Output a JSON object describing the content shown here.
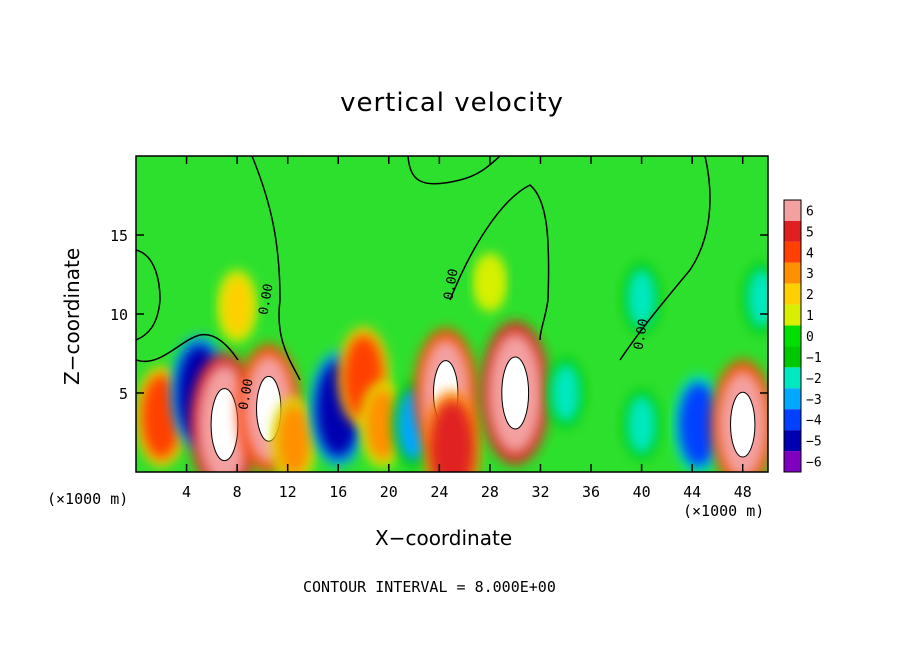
{
  "chart_data": {
    "type": "heatmap",
    "title": "vertical velocity",
    "xlabel": "X−coordinate",
    "ylabel": "Z−coordinate",
    "x_unit_left": "(×1000 m)",
    "x_unit_right": "(×1000 m)",
    "note": "CONTOUR INTERVAL = 8.000E+00",
    "xlim": [
      0,
      50
    ],
    "ylim": [
      0,
      20
    ],
    "x_ticks": [
      4,
      8,
      12,
      16,
      20,
      24,
      28,
      32,
      36,
      40,
      44,
      48
    ],
    "y_ticks": [
      5,
      10,
      15
    ],
    "contour_label": "0.00",
    "colorbar": {
      "ticks": [
        6,
        5,
        4,
        3,
        2,
        1,
        0,
        -1,
        -2,
        -3,
        -4,
        -5,
        -6
      ],
      "colors": [
        "#f4a0a0",
        "#e02020",
        "#ff4000",
        "#ff9000",
        "#ffd000",
        "#d8f000",
        "#00e000",
        "#00c800",
        "#00e8c0",
        "#00a8ff",
        "#0040ff",
        "#0000b0",
        "#8000c0"
      ]
    },
    "features": [
      {
        "x": 2,
        "z": 3.5,
        "w": 4
      },
      {
        "x": 5,
        "z": 5,
        "w": -5
      },
      {
        "x": 7,
        "z": 3,
        "w": 7
      },
      {
        "x": 10.5,
        "z": 4,
        "w": 6
      },
      {
        "x": 12.5,
        "z": 2,
        "w": 3
      },
      {
        "x": 16,
        "z": 4,
        "w": -5
      },
      {
        "x": 18,
        "z": 6,
        "w": 4
      },
      {
        "x": 19.5,
        "z": 3,
        "w": 3
      },
      {
        "x": 22,
        "z": 3,
        "w": -3
      },
      {
        "x": 24.5,
        "z": 5,
        "w": 6
      },
      {
        "x": 25,
        "z": 1.5,
        "w": 5
      },
      {
        "x": 30,
        "z": 5,
        "w": 7
      },
      {
        "x": 34,
        "z": 5,
        "w": -2
      },
      {
        "x": 40,
        "z": 3,
        "w": -2
      },
      {
        "x": 44.5,
        "z": 3,
        "w": -4
      },
      {
        "x": 48,
        "z": 3,
        "w": 6
      },
      {
        "x": 8,
        "z": 10.5,
        "w": 2
      },
      {
        "x": 28,
        "z": 12,
        "w": 1
      },
      {
        "x": 40,
        "z": 11,
        "w": -2
      },
      {
        "x": 49.5,
        "z": 11,
        "w": -2
      }
    ]
  }
}
